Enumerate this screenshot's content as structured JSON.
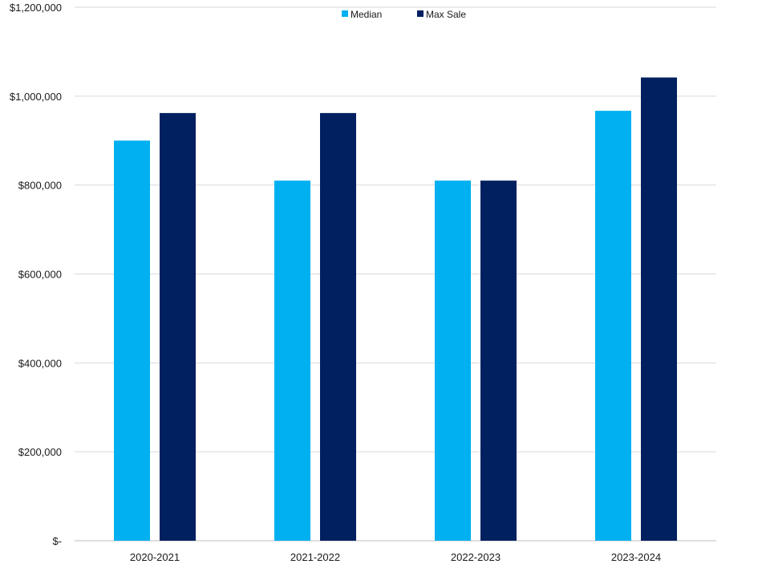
{
  "chart_data": {
    "type": "bar",
    "categories": [
      "2020-2021",
      "2021-2022",
      "2022-2023",
      "2023-2024"
    ],
    "series": [
      {
        "name": "Median",
        "color": "#00B0F0",
        "values": [
          900000,
          810000,
          810000,
          967000
        ]
      },
      {
        "name": "Max Sale",
        "color": "#002060",
        "values": [
          962000,
          962000,
          810000,
          1042000
        ]
      }
    ],
    "ylim": [
      0,
      1200000
    ],
    "y_ticks": [
      0,
      200000,
      400000,
      600000,
      800000,
      1000000,
      1200000
    ],
    "y_tick_labels": [
      "$-",
      "$200,000",
      "$400,000",
      "$600,000",
      "$800,000",
      "$1,000,000",
      "$1,200,000"
    ],
    "grid": true,
    "legend_position": "top-center",
    "title": "",
    "xlabel": "",
    "ylabel": ""
  }
}
